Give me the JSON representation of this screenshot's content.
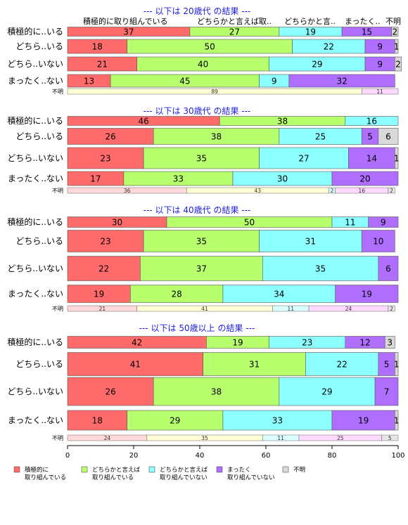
{
  "chart_data": {
    "type": "bar",
    "orientation": "horizontal",
    "stacked": "percent",
    "xlim": [
      0,
      100
    ],
    "x_ticks": [
      0,
      20,
      40,
      60,
      80,
      100
    ],
    "grid": false,
    "legend_position": "bottom",
    "top_header_labels": [
      "積極的に取り組んでいる",
      "どちらかと言えば取..",
      "どちらかと言..",
      "まったく..",
      "不明"
    ],
    "legend": [
      {
        "label_lines": [
          "積極的に",
          "取り組んでいる"
        ],
        "color": "#FF6B6B"
      },
      {
        "label_lines": [
          "どちらかと言えば",
          "取り組んでいる"
        ],
        "color": "#B8FF6E"
      },
      {
        "label_lines": [
          "どちらかと言えば",
          "取り組んでいない"
        ],
        "color": "#8CFFFF"
      },
      {
        "label_lines": [
          "まったく",
          "取り組んでいない"
        ],
        "color": "#B06EFF"
      },
      {
        "label_lines": [
          "不明"
        ],
        "color": "#D9D9D9"
      }
    ],
    "light_colors": [
      "#FFD9D9",
      "#FFFFD6",
      "#D9FFFF",
      "#FFD9FF",
      "#E6E6E6"
    ],
    "panels": [
      {
        "title": "--- 以下は 20歳代 の結果 ---",
        "rows": [
          {
            "label": "積極的に..いる",
            "values": [
              37,
              27,
              19,
              15,
              2
            ]
          },
          {
            "label": "どちら..いる",
            "values": [
              18,
              50,
              22,
              9,
              1
            ]
          },
          {
            "label": "どちら..いない",
            "values": [
              21,
              40,
              29,
              9,
              2
            ]
          },
          {
            "label": "まったく..ない",
            "values": [
              13,
              45,
              9,
              32,
              0
            ]
          }
        ],
        "unknown": {
          "label": "不明",
          "values": [
            0,
            89,
            0,
            11,
            0
          ],
          "labels": [
            "",
            "89",
            "",
            "11",
            ""
          ]
        }
      },
      {
        "title": "--- 以下は 30歳代 の結果 ---",
        "rows": [
          {
            "label": "積極的に..いる",
            "values": [
              46,
              38,
              16,
              0,
              0
            ]
          },
          {
            "label": "どちら..いる",
            "values": [
              26,
              38,
              25,
              5,
              6
            ]
          },
          {
            "label": "どちら..いない",
            "values": [
              23,
              35,
              27,
              14,
              1
            ]
          },
          {
            "label": "まったく..ない",
            "values": [
              17,
              33,
              30,
              20,
              0
            ]
          }
        ],
        "unknown": {
          "label": "不明",
          "values": [
            36,
            43,
            2,
            16,
            2
          ],
          "labels": [
            "36",
            "43",
            "2",
            "16",
            "2"
          ]
        }
      },
      {
        "title": "--- 以下は 40歳代 の結果 ---",
        "rows": [
          {
            "label": "積極的に..いる",
            "values": [
              30,
              50,
              11,
              9,
              0
            ]
          },
          {
            "label": "どちら..いる",
            "values": [
              23,
              35,
              31,
              10,
              0
            ]
          },
          {
            "label": "どちら..いない",
            "values": [
              22,
              37,
              35,
              6,
              0
            ]
          },
          {
            "label": "まったく..ない",
            "values": [
              19,
              28,
              34,
              19,
              0
            ]
          }
        ],
        "unknown": {
          "label": "不明",
          "values": [
            21,
            41,
            11,
            24,
            2
          ],
          "labels": [
            "21",
            "41",
            "11",
            "24",
            "2"
          ]
        }
      },
      {
        "title": "--- 以下は 50歳以上 の結果 ---",
        "rows": [
          {
            "label": "積極的に..いる",
            "values": [
              42,
              19,
              23,
              12,
              3
            ]
          },
          {
            "label": "どちら..いる",
            "values": [
              41,
              31,
              22,
              5,
              1
            ]
          },
          {
            "label": "どちら..いない",
            "values": [
              26,
              38,
              29,
              7,
              0
            ]
          },
          {
            "label": "まったく..ない",
            "values": [
              18,
              29,
              33,
              19,
              1
            ]
          }
        ],
        "unknown": {
          "label": "不明",
          "values": [
            24,
            35,
            11,
            25,
            5
          ],
          "labels": [
            "24",
            "35",
            "11",
            "25",
            "5"
          ]
        }
      }
    ]
  }
}
